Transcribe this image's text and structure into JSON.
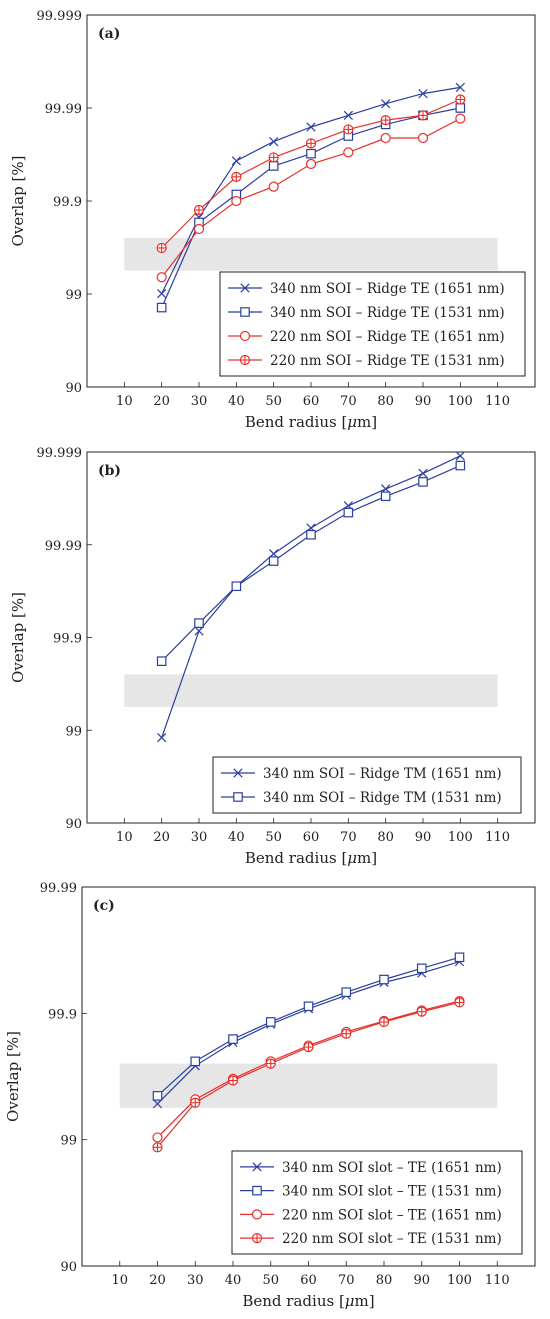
{
  "chart_data": [
    {
      "type": "line",
      "panel_label": "(a)",
      "xlabel_pre": "Bend radius [",
      "xlabel_mu": "μ",
      "xlabel_post": "m]",
      "ylabel": "Overlap [%]",
      "xlim": [
        0,
        120
      ],
      "xticks": [
        10,
        20,
        30,
        40,
        50,
        60,
        70,
        80,
        90,
        100,
        110
      ],
      "y_scale": "log of (100 - overlap)",
      "ytick_labels": [
        "90",
        "99",
        "99.9",
        "99.99",
        "99.999"
      ],
      "shaded_band": [
        99.44,
        99.75
      ],
      "legend_position": "bottom-right",
      "series": [
        {
          "name": "340 nm SOI – Ridge TE (1651 nm)",
          "marker": "x",
          "color": "#2b3f9e",
          "x": [
            20,
            30,
            40,
            50,
            60,
            70,
            80,
            90,
            100
          ],
          "y": [
            99.01,
            99.85,
            99.963,
            99.977,
            99.984,
            99.988,
            99.991,
            99.993,
            99.994
          ]
        },
        {
          "name": "340 nm SOI – Ridge TE (1531 nm)",
          "marker": "square",
          "color": "#2b3f9e",
          "x": [
            20,
            30,
            40,
            50,
            60,
            70,
            80,
            90,
            100
          ],
          "y": [
            98.6,
            99.83,
            99.915,
            99.958,
            99.969,
            99.98,
            99.985,
            99.988,
            99.99
          ]
        },
        {
          "name": "220 nm SOI – Ridge TE (1651 nm)",
          "marker": "circle",
          "color": "#e8302c",
          "x": [
            20,
            30,
            40,
            50,
            60,
            70,
            80,
            90,
            100
          ],
          "y": [
            99.34,
            99.8,
            99.9,
            99.93,
            99.96,
            99.97,
            99.979,
            99.979,
            99.987
          ]
        },
        {
          "name": "220 nm SOI – Ridge TE (1531 nm)",
          "marker": "circle-plus",
          "color": "#e8302c",
          "x": [
            20,
            30,
            40,
            50,
            60,
            70,
            80,
            90,
            100
          ],
          "y": [
            99.68,
            99.875,
            99.945,
            99.966,
            99.976,
            99.983,
            99.9865,
            99.988,
            99.9919
          ]
        }
      ]
    },
    {
      "type": "line",
      "panel_label": "(b)",
      "xlabel_pre": "Bend radius [",
      "xlabel_mu": "μ",
      "xlabel_post": "m]",
      "ylabel": "Overlap [%]",
      "xlim": [
        0,
        120
      ],
      "xticks": [
        10,
        20,
        30,
        40,
        50,
        60,
        70,
        80,
        90,
        100,
        110
      ],
      "y_scale": "log of (100 - overlap)",
      "ytick_labels": [
        "90",
        "99",
        "99.9",
        "99.99",
        "99.999"
      ],
      "shaded_band": [
        99.44,
        99.75
      ],
      "legend_position": "bottom-right",
      "series": [
        {
          "name": "340 nm SOI – Ridge TM (1651 nm)",
          "marker": "x",
          "color": "#2b3f9e",
          "x": [
            20,
            30,
            40,
            50,
            60,
            70,
            80,
            90,
            100
          ],
          "y": [
            98.8,
            99.915,
            99.972,
            99.9875,
            99.9934,
            99.9962,
            99.9975,
            99.9983,
            99.9989
          ]
        },
        {
          "name": "340 nm SOI – Ridge TM (1531 nm)",
          "marker": "square",
          "color": "#2b3f9e",
          "x": [
            20,
            30,
            40,
            50,
            60,
            70,
            80,
            90,
            100
          ],
          "y": [
            99.82,
            99.93,
            99.972,
            99.985,
            99.9922,
            99.9955,
            99.997,
            99.9979,
            99.9986
          ]
        }
      ]
    },
    {
      "type": "line",
      "panel_label": "(c)",
      "xlabel_pre": "Bend radius [",
      "xlabel_mu": "μ",
      "xlabel_post": "m]",
      "ylabel": "Overlap [%]",
      "xlim": [
        0,
        120
      ],
      "xticks": [
        10,
        20,
        30,
        40,
        50,
        60,
        70,
        80,
        90,
        100,
        110
      ],
      "y_scale": "log of (100 - overlap)",
      "ytick_labels": [
        "90",
        "99",
        "99.9",
        "99.99"
      ],
      "shaded_band": [
        99.44,
        99.75
      ],
      "legend_position": "bottom-right",
      "series": [
        {
          "name": "340 nm SOI slot – TE (1651 nm)",
          "marker": "x",
          "color": "#2b3f9e",
          "x": [
            20,
            30,
            40,
            50,
            60,
            70,
            80,
            90,
            100
          ],
          "y": [
            99.48,
            99.74,
            99.83,
            99.878,
            99.908,
            99.928,
            99.943,
            99.952,
            99.961
          ]
        },
        {
          "name": "340 nm SOI slot – TE (1531 nm)",
          "marker": "square",
          "color": "#2b3f9e",
          "x": [
            20,
            30,
            40,
            50,
            60,
            70,
            80,
            90,
            100
          ],
          "y": [
            99.55,
            99.76,
            99.84,
            99.883,
            99.912,
            99.932,
            99.946,
            99.956,
            99.964
          ]
        },
        {
          "name": "220 nm SOI slot – TE (1651 nm)",
          "marker": "circle",
          "color": "#e8302c",
          "x": [
            20,
            30,
            40,
            50,
            60,
            70,
            80,
            90,
            100
          ],
          "y": [
            99.04,
            99.52,
            99.67,
            99.76,
            99.82,
            99.86,
            99.885,
            99.905,
            99.92
          ]
        },
        {
          "name": "220 nm SOI slot – TE (1531 nm)",
          "marker": "circle-plus",
          "color": "#e8302c",
          "x": [
            20,
            30,
            40,
            50,
            60,
            70,
            80,
            90,
            100
          ],
          "y": [
            98.85,
            99.49,
            99.66,
            99.75,
            99.815,
            99.855,
            99.883,
            99.903,
            99.918
          ]
        }
      ]
    }
  ]
}
